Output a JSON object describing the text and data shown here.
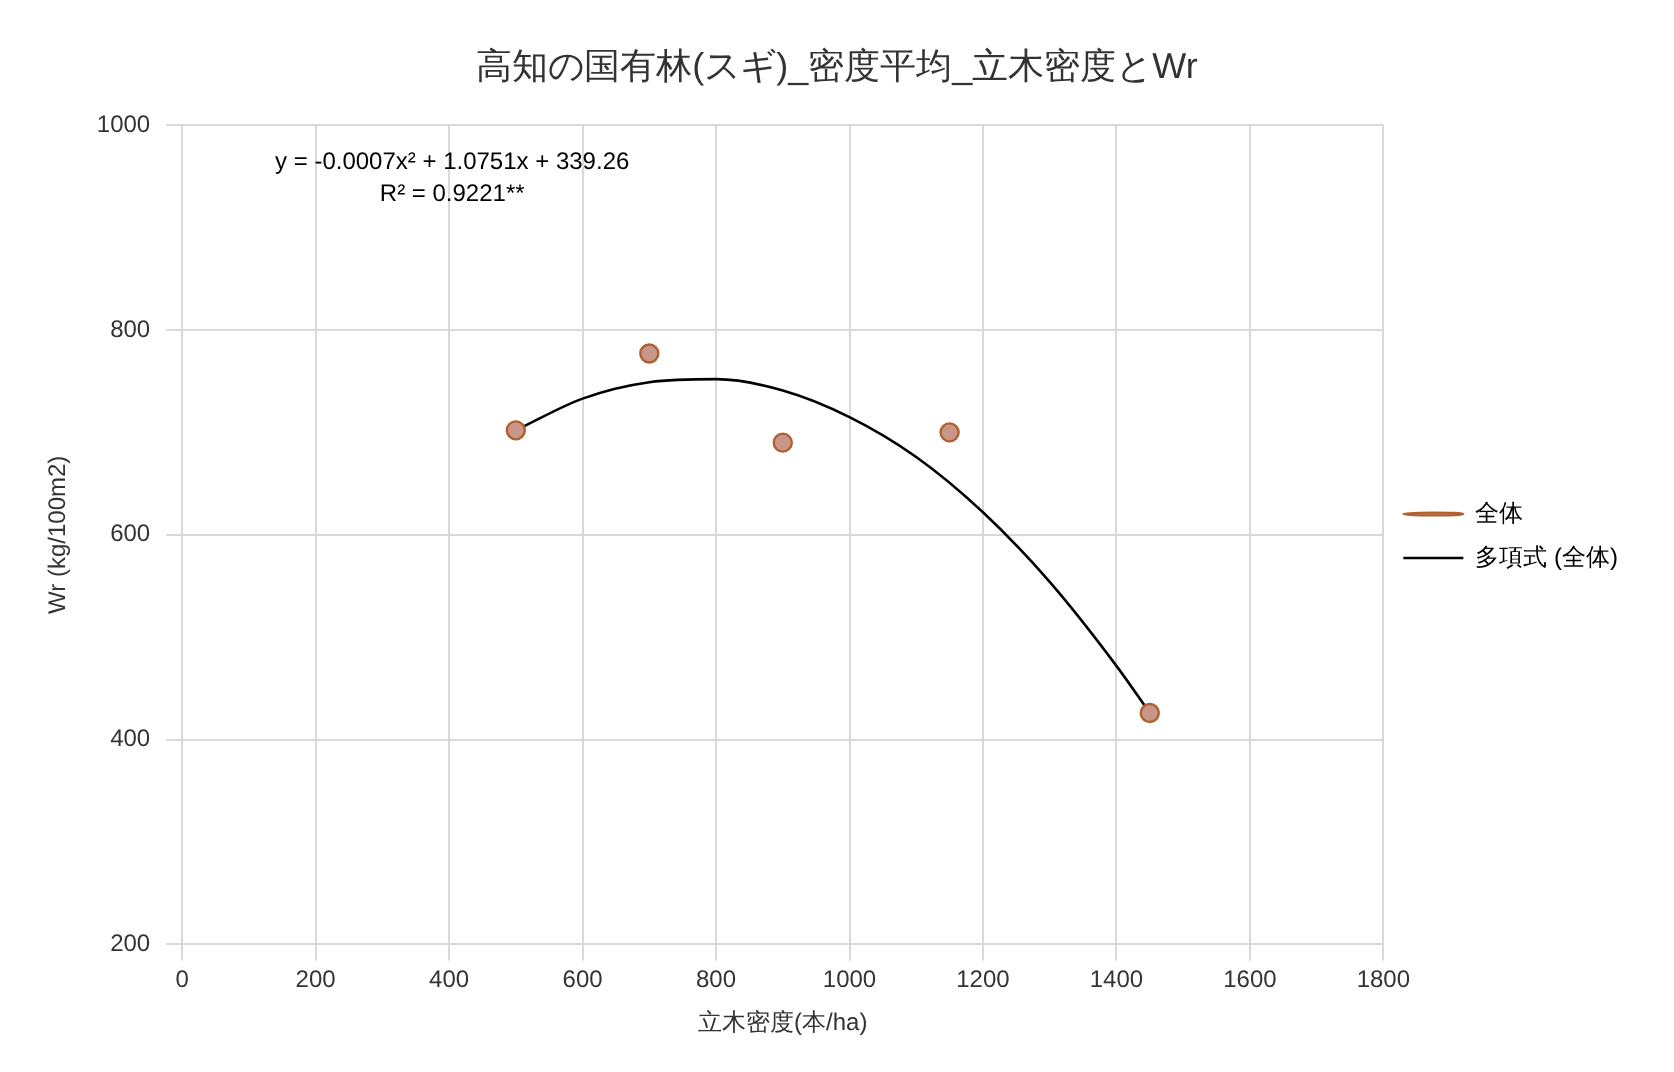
{
  "chart_data": {
    "type": "scatter",
    "title": "高知の国有林(スギ)_密度平均_立木密度とWr",
    "xlabel": "立木密度(本/ha)",
    "ylabel": "Wr (kg/100m2)",
    "annotations": [
      "y = -0.0007x² + 1.0751x + 339.26",
      "R² = 0.9221**"
    ],
    "xlim": [
      0,
      1800
    ],
    "xticks": [
      0,
      200,
      400,
      600,
      800,
      1000,
      1200,
      1400,
      1600,
      1800
    ],
    "ylim": [
      200,
      1000
    ],
    "yticks": [
      200,
      400,
      600,
      800,
      1000
    ],
    "grid": true,
    "legend": "right",
    "series": [
      {
        "name": "全体",
        "type": "scatter",
        "color": "#c9968a",
        "marker": "circle",
        "x": [
          500,
          700,
          900,
          1150,
          1450
        ],
        "values": [
          702,
          777,
          690,
          700,
          426
        ]
      },
      {
        "name": "多項式 (全体)",
        "type": "line",
        "color": "#000000",
        "marker": "none",
        "line_style": "solid",
        "x": [
          500,
          600,
          700,
          800,
          900,
          1000,
          1100,
          1200,
          1300,
          1400,
          1450
        ],
        "values": [
          702,
          733,
          749,
          752,
          741,
          715,
          676,
          622,
          554,
          472,
          426
        ]
      }
    ]
  }
}
